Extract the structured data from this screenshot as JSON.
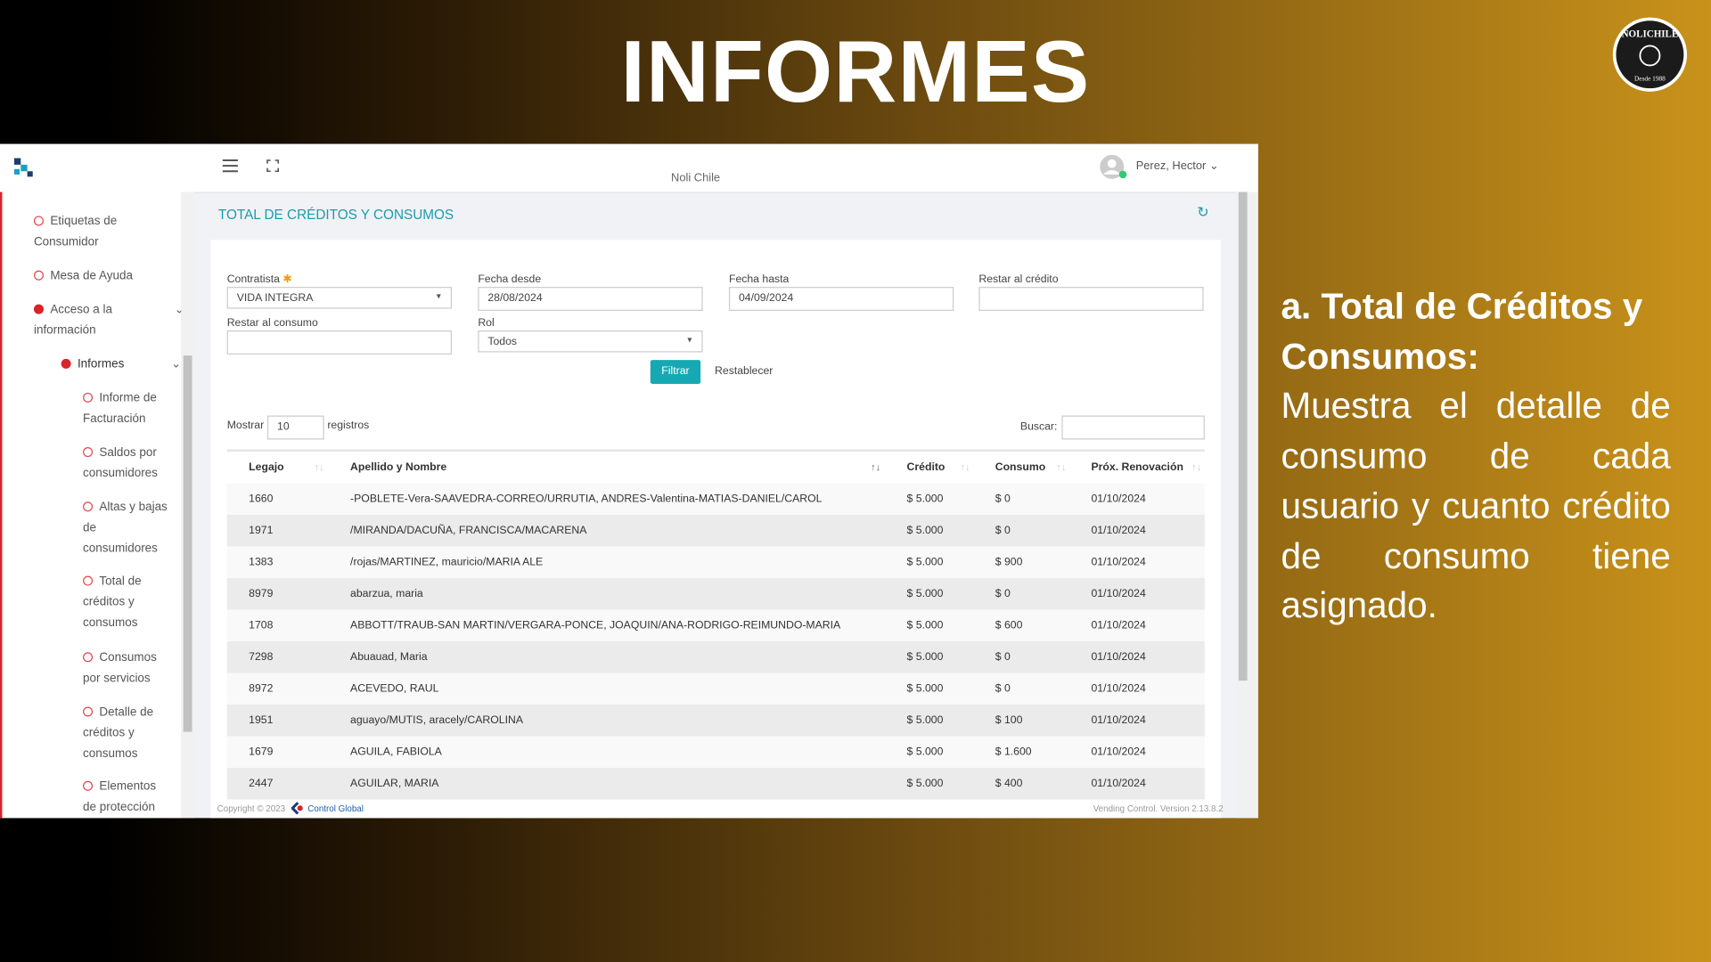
{
  "slide": {
    "title": "INFORMES",
    "logo": {
      "top": "NOLICHILE",
      "bottom": "Desde 1988"
    }
  },
  "app": {
    "org": "Noli Chile",
    "user": "Perez, Hector",
    "sidebar": {
      "items": [
        "Etiquetas de Consumidor",
        "Mesa de Ayuda"
      ],
      "group": {
        "label": "Acceso a la información",
        "sub": {
          "label": "Informes",
          "items": [
            "Informe de Facturación",
            "Saldos por consumidores",
            "Altas y bajas de consumidores",
            "Total de créditos y consumos",
            "Consumos por servicios",
            "Detalle de créditos y consumos",
            "Elementos de protección"
          ]
        }
      }
    },
    "page_title": "TOTAL DE CRÉDITOS Y CONSUMOS",
    "form": {
      "fields": [
        {
          "label": "Contratista",
          "value": "VIDA INTEGRA"
        },
        {
          "label": "Fecha desde",
          "value": "28/08/2024"
        },
        {
          "label": "Fecha hasta",
          "value": "04/09/2024"
        },
        {
          "label": "Restar al crédito",
          "value": ""
        },
        {
          "label": "Restar al consumo",
          "value": ""
        },
        {
          "label": "Rol",
          "value": "Todos"
        }
      ],
      "filter": "Filtrar",
      "reset": "Restablecer"
    },
    "length": {
      "label": "Mostrar",
      "value": "10",
      "suffix": "registros"
    },
    "search": "Buscar:",
    "table": {
      "columns": [
        "Legajo",
        "Apellido y Nombre",
        "Crédito",
        "Consumo",
        "Próx. Renovación"
      ],
      "rows": [
        [
          "1660",
          "-POBLETE-Vera-SAAVEDRA-CORREO/URRUTIA, ANDRES-Valentina-MATIAS-DANIEL/CAROL",
          "$ 5.000",
          "$ 0",
          "01/10/2024"
        ],
        [
          "1971",
          "/MIRANDA/DACUÑA, FRANCISCA/MACARENA",
          "$ 5.000",
          "$ 0",
          "01/10/2024"
        ],
        [
          "1383",
          "/rojas/MARTINEZ, mauricio/MARIA ALE",
          "$ 5.000",
          "$ 900",
          "01/10/2024"
        ],
        [
          "8979",
          "abarzua, maria",
          "$ 5.000",
          "$ 0",
          "01/10/2024"
        ],
        [
          "1708",
          "ABBOTT/TRAUB-SAN MARTIN/VERGARA-PONCE, JOAQUIN/ANA-RODRIGO-REIMUNDO-MARIA",
          "$ 5.000",
          "$ 600",
          "01/10/2024"
        ],
        [
          "7298",
          "Abuauad, Maria",
          "$ 5.000",
          "$ 0",
          "01/10/2024"
        ],
        [
          "8972",
          "ACEVEDO, RAUL",
          "$ 5.000",
          "$ 0",
          "01/10/2024"
        ],
        [
          "1951",
          "aguayo/MUTIS, aracely/CAROLINA",
          "$ 5.000",
          "$ 100",
          "01/10/2024"
        ],
        [
          "1679",
          "AGUILA, FABIOLA",
          "$ 5.000",
          "$ 1.600",
          "01/10/2024"
        ],
        [
          "2447",
          "AGUILAR, MARIA",
          "$ 5.000",
          "$ 400",
          "01/10/2024"
        ]
      ]
    },
    "footer": {
      "copyright": "Copyright © 2023",
      "brand": "Control Global",
      "version": "Vending Control. Version 2.13.8.2"
    }
  },
  "panel": {
    "heading": "a. Total de Créditos y Consumos:",
    "body": "Muestra el detalle de consumo de cada usuario y cuanto crédito de consumo tiene asignado."
  }
}
